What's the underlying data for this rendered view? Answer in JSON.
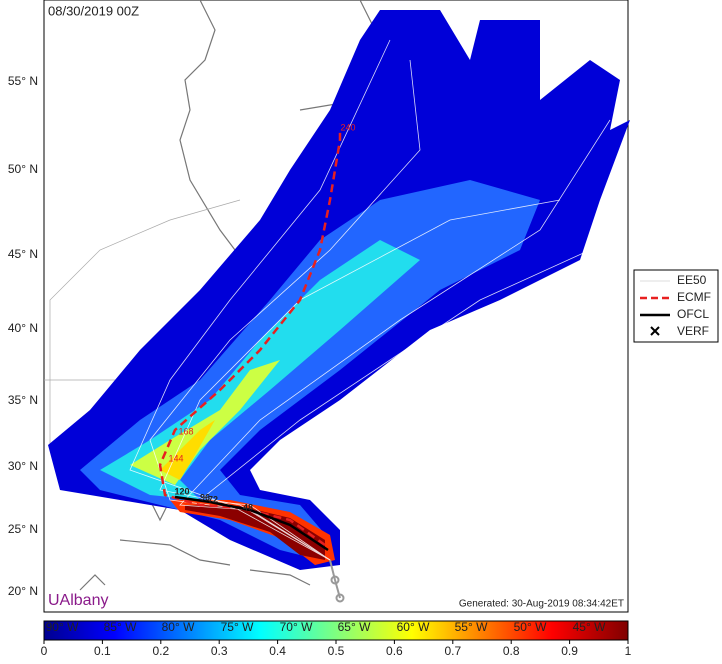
{
  "header": {
    "title": "08/30/2019 00Z"
  },
  "map": {
    "lat_labels": [
      "55° N",
      "50° N",
      "45° N",
      "40° N",
      "35° N",
      "30° N",
      "25° N",
      "20° N"
    ],
    "lon_labels": [
      "90° W",
      "85° W",
      "80° W",
      "75° W",
      "70° W",
      "65° W",
      "60° W",
      "55° W",
      "50° W",
      "45° W"
    ],
    "ofcl_hours": [
      "120",
      "96",
      "72",
      "48"
    ],
    "ecmf_hours": [
      "240",
      "168",
      "144"
    ],
    "brand": "UAlbany",
    "generated": "Generated: 30-Aug-2019 08:34:42ET"
  },
  "legend": {
    "items": [
      "EE50",
      "ECMF",
      "OFCL",
      "VERF"
    ]
  },
  "colorbar": {
    "ticks": [
      0,
      0.1,
      0.2,
      0.3,
      0.4,
      0.5,
      0.6,
      0.7,
      0.8,
      0.9,
      1
    ]
  }
}
